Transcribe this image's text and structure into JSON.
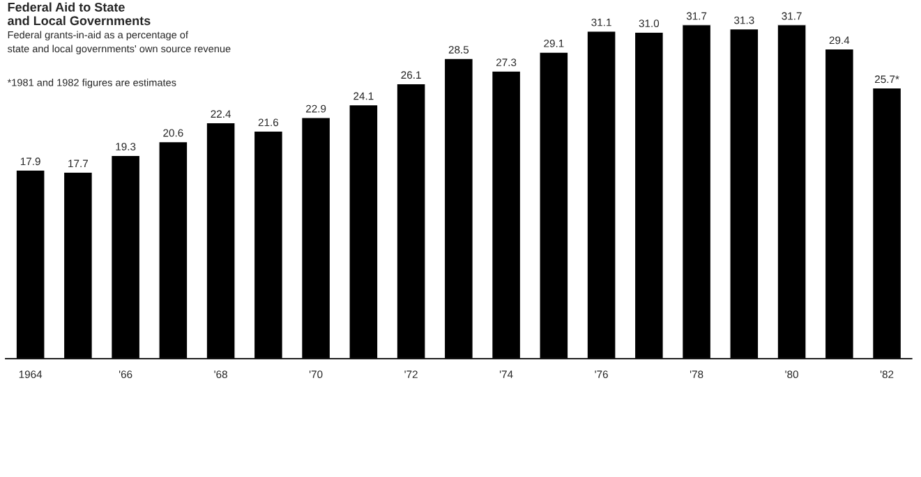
{
  "chart_data": {
    "type": "bar",
    "title": "Federal Aid to State\nand Local Governments",
    "subtitle": "Federal grants-in-aid as a percentage of\nstate and local governments' own source revenue",
    "annotations": [
      "*1981 and 1982 figures are estimates"
    ],
    "categories": [
      "1964",
      null,
      "'66",
      null,
      "'68",
      null,
      "'70",
      null,
      "'72",
      null,
      "'74",
      null,
      "'76",
      null,
      "'78",
      null,
      "'80",
      null,
      "'82"
    ],
    "values": [
      17.9,
      17.7,
      19.3,
      20.6,
      22.4,
      21.6,
      22.9,
      24.1,
      26.1,
      28.5,
      27.3,
      29.1,
      31.1,
      31.0,
      31.7,
      31.3,
      31.7,
      29.4,
      25.7
    ],
    "value_labels": [
      "17.9",
      "17.7",
      "19.3",
      "20.6",
      "22.4",
      "21.6",
      "22.9",
      "24.1",
      "26.1",
      "28.5",
      "27.3",
      "29.1",
      "31.1",
      "31.0",
      "31.7",
      "31.3",
      "31.7",
      "29.4",
      "25.7*"
    ],
    "color": "#000000",
    "grid": false,
    "legend": false
  }
}
